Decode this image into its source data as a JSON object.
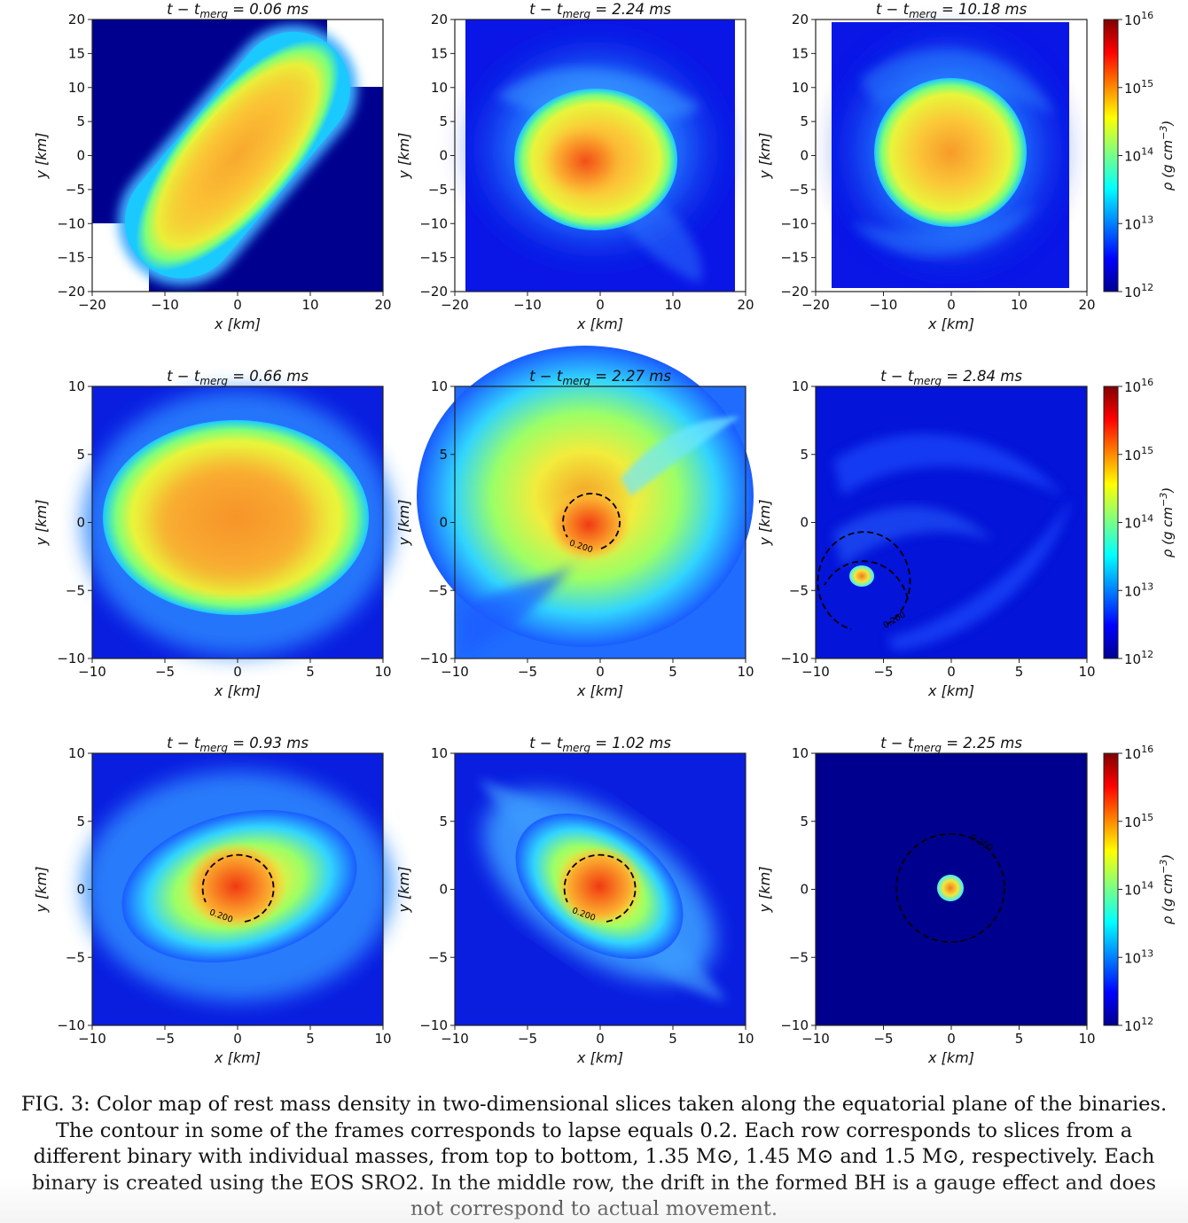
{
  "figure": {
    "panels": [
      {
        "id": "r1c1",
        "title": "t − t",
        "title_sub": "merg",
        "time": "= 0.06 ms",
        "xlabel": "x [km]",
        "ylabel": "y [km]",
        "xticks": [
          "−20",
          "−10",
          "0",
          "10",
          "20"
        ],
        "yticks": [
          "20",
          "15",
          "10",
          "5",
          "0",
          "−5",
          "−10",
          "−15",
          "−20"
        ],
        "range": [
          -20,
          20
        ]
      },
      {
        "id": "r1c2",
        "title": "t − t",
        "title_sub": "merg",
        "time": "= 2.24 ms",
        "xlabel": "x [km]",
        "ylabel": "y [km]",
        "xticks": [
          "−20",
          "−10",
          "0",
          "10",
          "20"
        ],
        "yticks": [
          "20",
          "15",
          "10",
          "5",
          "0",
          "−5",
          "−10",
          "−15",
          "−20"
        ],
        "range": [
          -20,
          20
        ]
      },
      {
        "id": "r1c3",
        "title": "t − t",
        "title_sub": "merg",
        "time": "= 10.18 ms",
        "xlabel": "x [km]",
        "ylabel": "y [km]",
        "xticks": [
          "−20",
          "−10",
          "0",
          "10",
          "20"
        ],
        "yticks": [
          "20",
          "15",
          "10",
          "5",
          "0",
          "−5",
          "−10",
          "−15",
          "−20"
        ],
        "range": [
          -20,
          20
        ]
      },
      {
        "id": "r2c1",
        "title": "t − t",
        "title_sub": "merg",
        "time": "= 0.66 ms",
        "xlabel": "x [km]",
        "ylabel": "y [km]",
        "xticks": [
          "−10",
          "−5",
          "0",
          "5",
          "10"
        ],
        "yticks": [
          "10",
          "5",
          "0",
          "−5",
          "−10"
        ],
        "range": [
          -10,
          10
        ]
      },
      {
        "id": "r2c2",
        "title": "t − t",
        "title_sub": "merg",
        "time": "= 2.27 ms",
        "xlabel": "x [km]",
        "ylabel": "y [km]",
        "xticks": [
          "−10",
          "−5",
          "0",
          "5",
          "10"
        ],
        "yticks": [
          "10",
          "5",
          "0",
          "−5",
          "−10"
        ],
        "range": [
          -10,
          10
        ],
        "contour_label": "0.200"
      },
      {
        "id": "r2c3",
        "title": "t − t",
        "title_sub": "merg",
        "time": "= 2.84 ms",
        "xlabel": "x [km]",
        "ylabel": "y [km]",
        "xticks": [
          "−10",
          "−5",
          "0",
          "5",
          "10"
        ],
        "yticks": [
          "10",
          "5",
          "0",
          "−5",
          "−10"
        ],
        "range": [
          -10,
          10
        ],
        "contour_label": "0.200"
      },
      {
        "id": "r3c1",
        "title": "t − t",
        "title_sub": "merg",
        "time": "= 0.93 ms",
        "xlabel": "x [km]",
        "ylabel": "y [km]",
        "xticks": [
          "−10",
          "−5",
          "0",
          "5",
          "10"
        ],
        "yticks": [
          "10",
          "5",
          "0",
          "−5",
          "−10"
        ],
        "range": [
          -10,
          10
        ],
        "contour_label": "0.200"
      },
      {
        "id": "r3c2",
        "title": "t − t",
        "title_sub": "merg",
        "time": "= 1.02 ms",
        "xlabel": "x [km]",
        "ylabel": "y [km]",
        "xticks": [
          "−10",
          "−5",
          "0",
          "5",
          "10"
        ],
        "yticks": [
          "10",
          "5",
          "0",
          "−5",
          "−10"
        ],
        "range": [
          -10,
          10
        ],
        "contour_label": "0.200"
      },
      {
        "id": "r3c3",
        "title": "t − t",
        "title_sub": "merg",
        "time": "= 2.25 ms",
        "xlabel": "x [km]",
        "ylabel": "y [km]",
        "xticks": [
          "−10",
          "−5",
          "0",
          "5",
          "10"
        ],
        "yticks": [
          "10",
          "5",
          "0",
          "−5",
          "−10"
        ],
        "range": [
          -10,
          10
        ],
        "contour_label": "0.200"
      }
    ],
    "colorbar": {
      "label": "ρ (g cm",
      "label_exp": "−3",
      "label_end": ")",
      "tick_base": "10",
      "tick_exps": [
        "16",
        "15",
        "14",
        "13",
        "12"
      ]
    },
    "colors": {
      "deep_blue": "#00008f",
      "blue": "#0000ff",
      "cyan": "#00ffff",
      "yellow": "#ffff00",
      "red": "#ff0000",
      "dark_red": "#800000"
    }
  },
  "caption": "FIG. 3: Color map of rest mass density in two-dimensional slices taken along the equatorial plane of the binaries. The contour in some of the frames corresponds to lapse equals 0.2. Each row corresponds to slices from a different binary with individual masses, from top to bottom, 1.35 M⊙, 1.45 M⊙ and 1.5 M⊙, respectively. Each binary is created using the EOS SRO2. In the middle row, the drift in the formed BH is a gauge effect and does not correspond to actual movement."
}
